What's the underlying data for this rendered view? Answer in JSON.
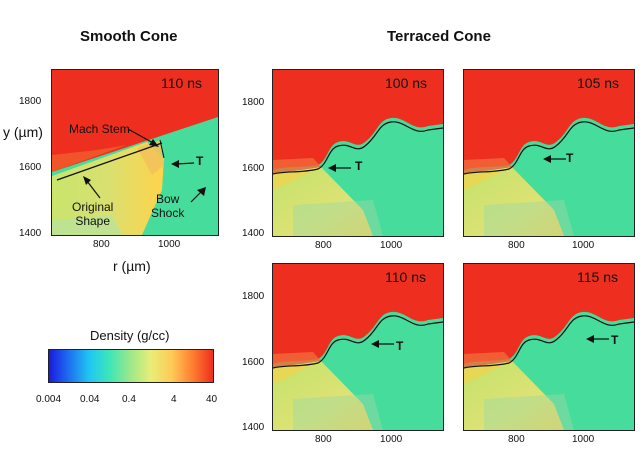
{
  "headings": {
    "smooth": "Smooth Cone",
    "terraced": "Terraced Cone"
  },
  "axes": {
    "y_label": "y (µm)",
    "x_label": "r (µm)",
    "y_ticks": [
      "1800",
      "1600",
      "1400"
    ],
    "x_ticks": [
      "800",
      "1000"
    ]
  },
  "panels": {
    "smooth": {
      "time": "110 ns"
    },
    "t100": {
      "time": "100 ns"
    },
    "t105": {
      "time": "105 ns"
    },
    "t110": {
      "time": "110 ns"
    },
    "t115": {
      "time": "115 ns"
    }
  },
  "annotations": {
    "mach_stem": "Mach Stem",
    "triple_point": "T",
    "original_shape": [
      "Original",
      "Shape"
    ],
    "bow_shock": [
      "Bow",
      "Shock"
    ]
  },
  "colorbar": {
    "title": "Density (g/cc)",
    "ticks": [
      "0.004",
      "0.04",
      "0.4",
      "4",
      "40"
    ]
  },
  "colors": {
    "dense": "#ee2f1f",
    "ambient": "#45dc9c",
    "shocked": "#b6e36a",
    "contour": "#111111"
  }
}
